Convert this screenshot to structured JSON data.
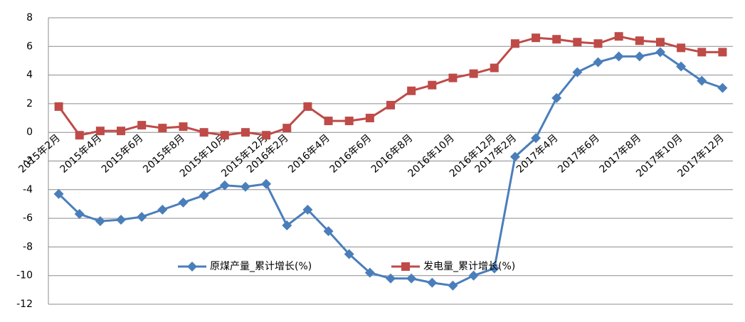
{
  "chart_data": {
    "type": "line",
    "categories": [
      "2015年2月",
      null,
      "2015年4月",
      null,
      "2015年6月",
      null,
      "2015年8月",
      null,
      "2015年10月",
      null,
      "2015年12月",
      "2016年2月",
      null,
      "2016年4月",
      null,
      "2016年6月",
      null,
      "2016年8月",
      null,
      "2016年10月",
      null,
      "2016年12月",
      "2017年2月",
      null,
      "2017年4月",
      null,
      "2017年6月",
      null,
      "2017年8月",
      null,
      "2017年10月",
      null,
      "2017年12月"
    ],
    "series": [
      {
        "name": "原煤产量_累计增长(%)",
        "color": "#4a7ebb",
        "marker": "diamond",
        "values": [
          -4.3,
          -5.7,
          -6.2,
          -6.1,
          -5.9,
          -5.4,
          -4.9,
          -4.4,
          -3.7,
          -3.8,
          -3.6,
          -6.5,
          -5.4,
          -6.9,
          -8.5,
          -9.8,
          -10.2,
          -10.2,
          -10.5,
          -10.7,
          -10.0,
          -9.5,
          -1.7,
          -0.4,
          2.4,
          4.2,
          4.9,
          5.3,
          5.3,
          5.6,
          4.6,
          3.6,
          3.1
        ]
      },
      {
        "name": "发电量_累计增长(%)",
        "color": "#be4b48",
        "marker": "square",
        "values": [
          1.8,
          -0.2,
          0.1,
          0.1,
          0.5,
          0.3,
          0.4,
          0.0,
          -0.2,
          0.0,
          -0.2,
          0.3,
          1.8,
          0.8,
          0.8,
          1.0,
          1.9,
          2.9,
          3.3,
          3.8,
          4.1,
          4.5,
          6.2,
          6.6,
          6.5,
          6.3,
          6.2,
          6.7,
          6.4,
          6.3,
          5.9,
          5.6,
          5.6
        ]
      }
    ],
    "ylim": [
      -12,
      8
    ],
    "yticks": [
      -12,
      -10,
      -8,
      -6,
      -4,
      -2,
      0,
      2,
      4,
      6,
      8
    ],
    "grid": true
  }
}
